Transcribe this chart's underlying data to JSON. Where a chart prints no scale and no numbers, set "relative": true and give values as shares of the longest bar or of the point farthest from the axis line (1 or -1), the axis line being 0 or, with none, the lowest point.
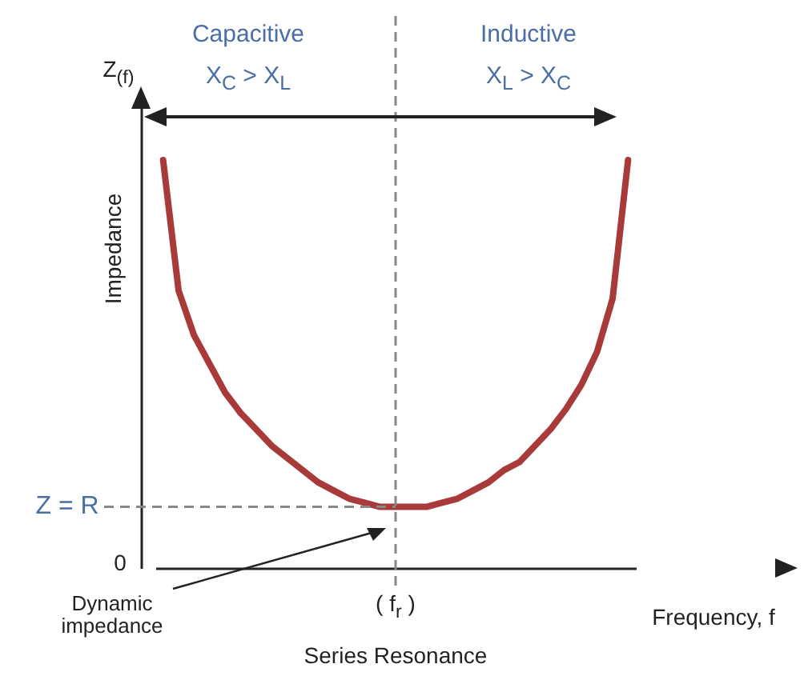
{
  "chart_data": {
    "type": "line",
    "relative": true,
    "xlabel": "Frequency, f",
    "ylabel": "Impedance",
    "categories": [
      null,
      null,
      null,
      null,
      null,
      null,
      null,
      null,
      null,
      null,
      null,
      null,
      null,
      null,
      null,
      null,
      null,
      null,
      null,
      null,
      null,
      null,
      null,
      null,
      null,
      null,
      null,
      null,
      null,
      null,
      null
    ],
    "series": [
      {
        "color": "#a83a3a",
        "values": [
          1.0,
          0.68,
          0.57,
          0.5,
          0.43,
          0.38,
          0.34,
          0.3,
          0.27,
          0.24,
          0.21,
          0.19,
          0.17,
          0.16,
          0.15,
          0.15,
          0.15,
          0.15,
          0.16,
          0.17,
          0.19,
          0.21,
          0.24,
          0.26,
          0.3,
          0.34,
          0.39,
          0.45,
          0.53,
          0.66,
          1.0
        ]
      }
    ],
    "ref_lines": [
      {
        "axis": "y",
        "value": 0.15,
        "label": "Z = R",
        "color": "#888888",
        "line_style": "dashed"
      }
    ],
    "annotations": [
      "Capacitive",
      "X$_{C}$ > X$_{L}$",
      "Inductive",
      "X$_{L}$ > X$_{C}$",
      "Z$_{(f)}$",
      "0",
      "Dynamic impedance",
      "Series Resonance",
      "( f$_{r}$ )"
    ]
  }
}
